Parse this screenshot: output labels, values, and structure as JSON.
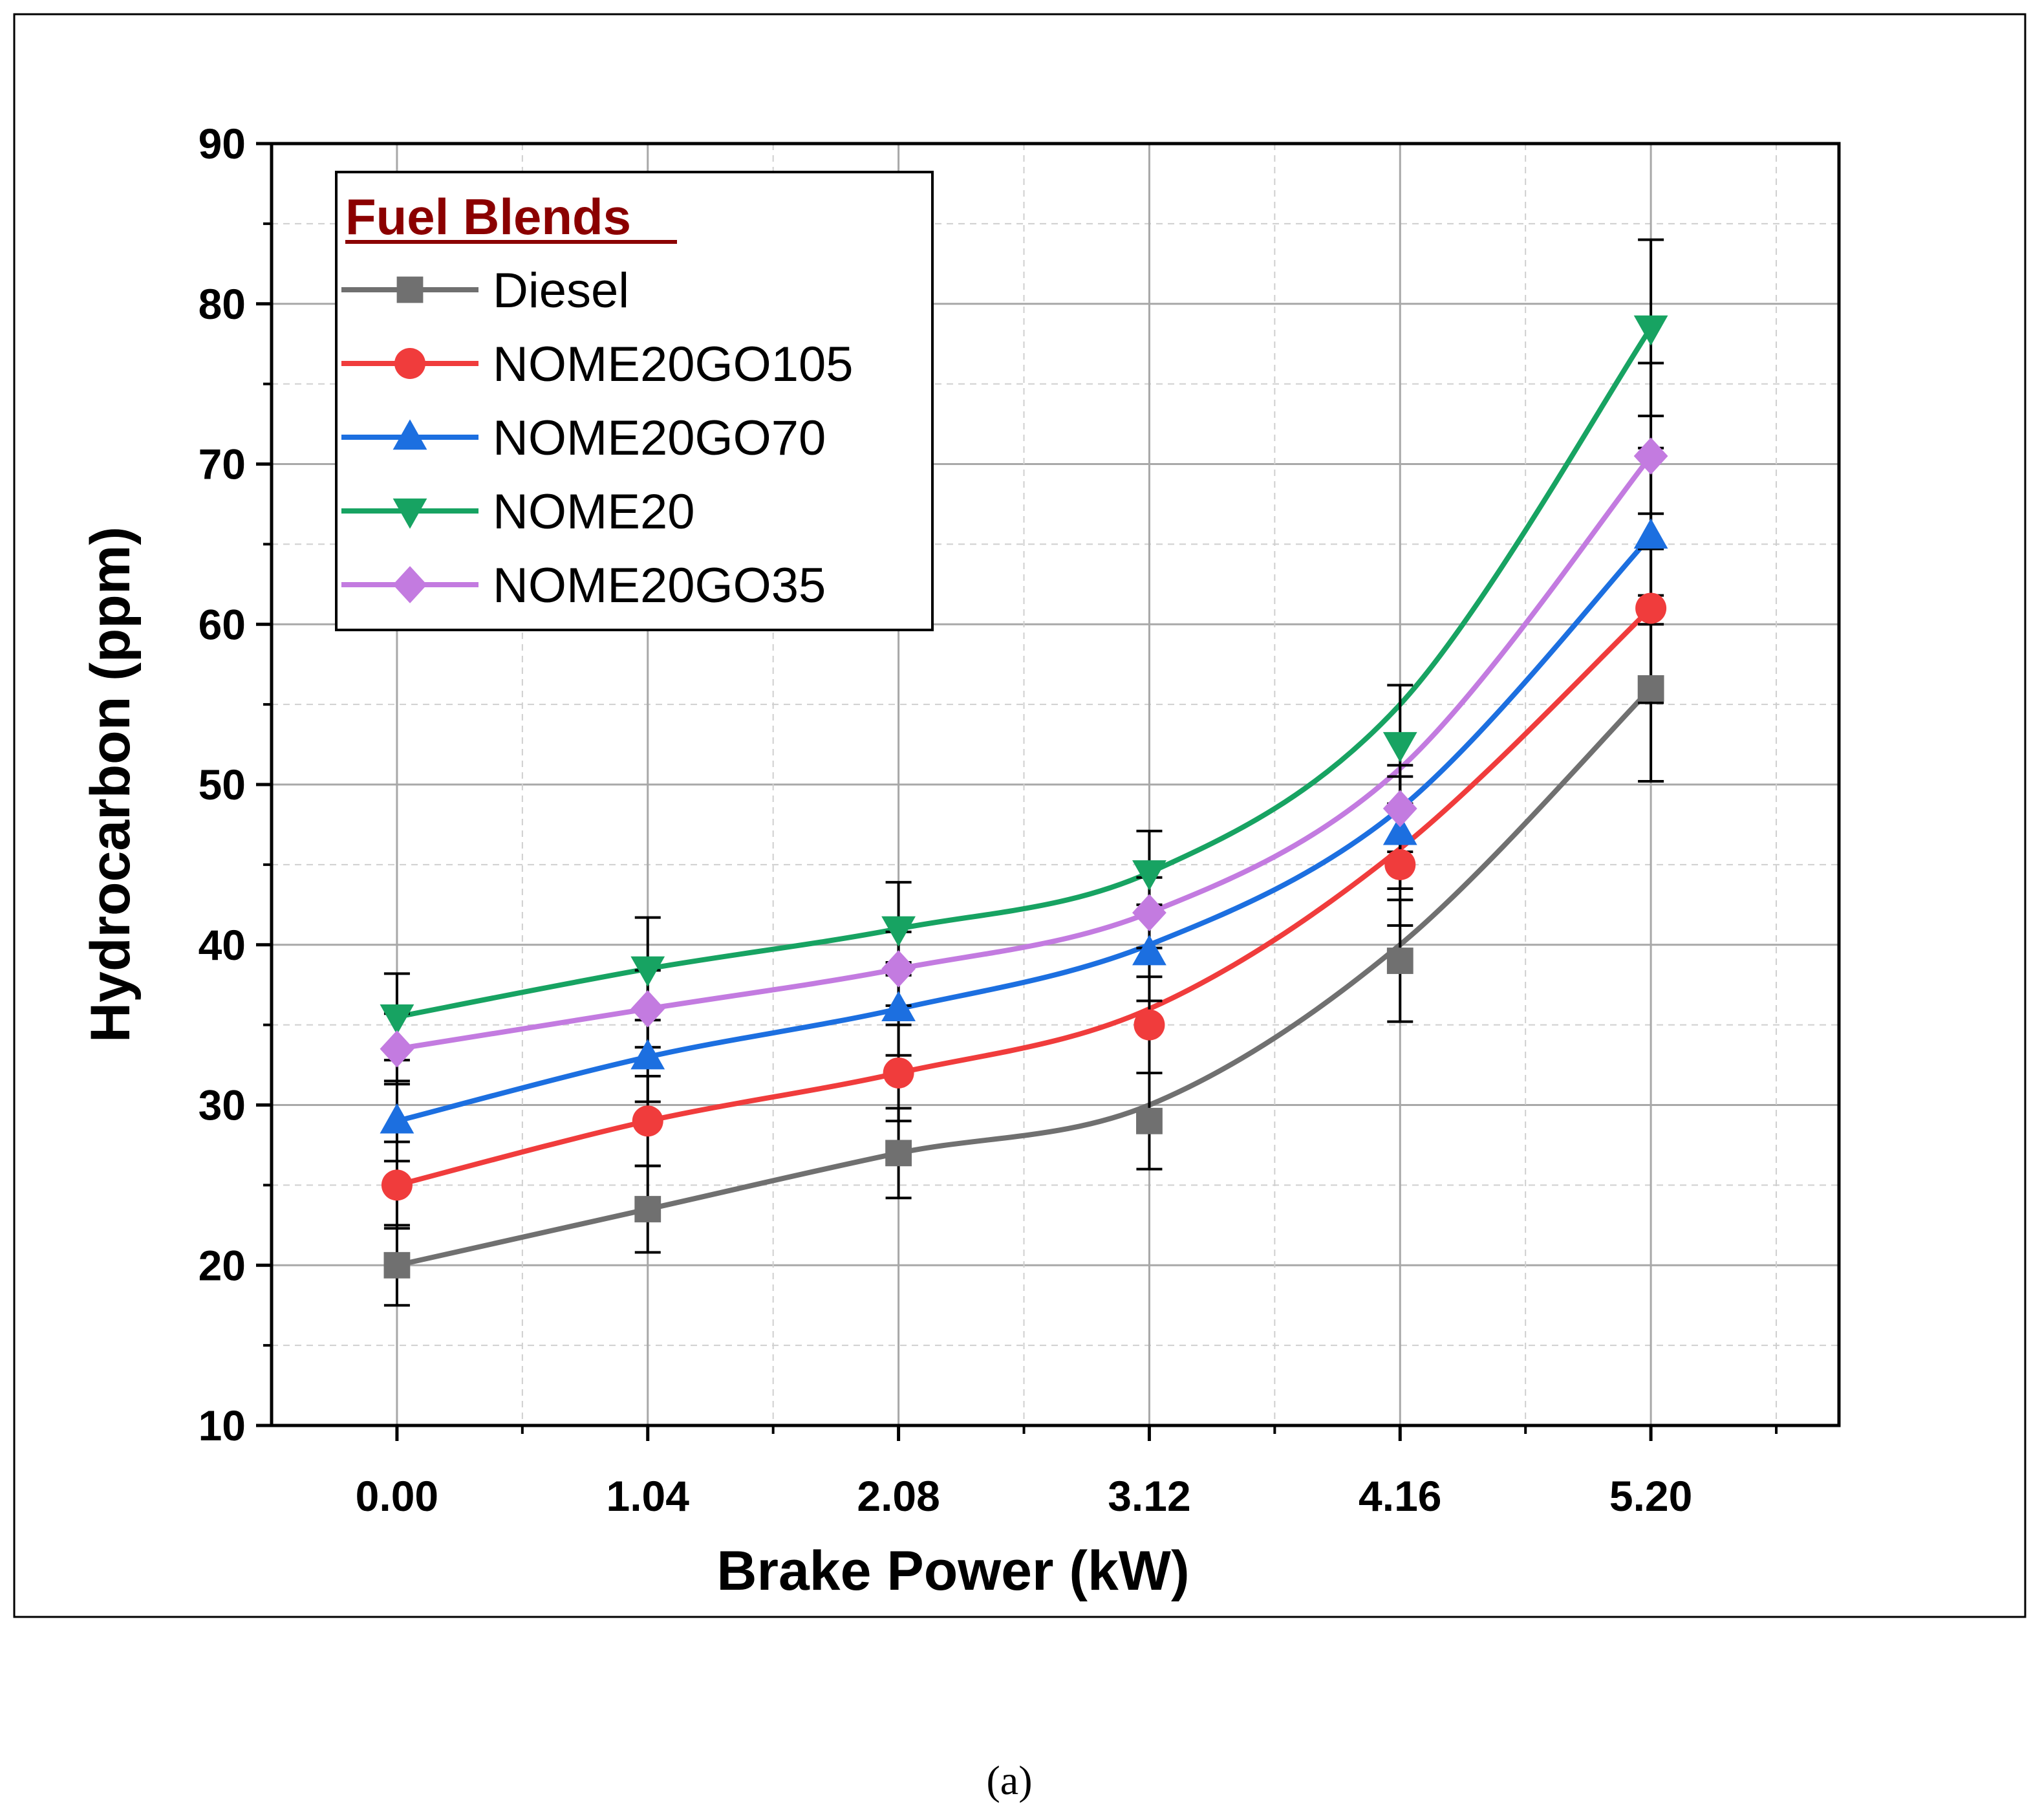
{
  "chart_data": {
    "type": "line",
    "xlabel": "Brake Power (kW)",
    "ylabel": "Hydrocarbon (ppm)",
    "x": [
      0.0,
      1.04,
      2.08,
      3.12,
      4.16,
      5.2
    ],
    "x_tick_labels": [
      "0.00",
      "1.04",
      "2.08",
      "3.12",
      "4.16",
      "5.20"
    ],
    "xlim": [
      -0.52,
      5.98
    ],
    "ylim": [
      10,
      90
    ],
    "y_ticks": [
      10,
      20,
      30,
      40,
      50,
      60,
      70,
      80,
      90
    ],
    "y_tick_labels": [
      "10",
      "20",
      "30",
      "40",
      "50",
      "60",
      "70",
      "80",
      "90"
    ],
    "grid": true,
    "legend": {
      "title": "Fuel Blends",
      "title_color": "#8b0000",
      "placement": "top-left"
    },
    "series": [
      {
        "name": "Diesel",
        "color": "#707070",
        "marker": "square",
        "values": [
          20.0,
          23.5,
          27.0,
          29.0,
          39.0,
          56.0
        ],
        "error": [
          2.5,
          2.7,
          2.8,
          3.0,
          3.8,
          5.8
        ],
        "curve": [
          20.0,
          23.5,
          27.0,
          30.0,
          40.0,
          56.0
        ]
      },
      {
        "name": "NOME20GO105",
        "color": "#f03c3c",
        "marker": "circle",
        "values": [
          25.0,
          29.0,
          32.0,
          35.0,
          45.0,
          61.0
        ],
        "error": [
          2.7,
          2.8,
          3.0,
          3.0,
          3.8,
          5.9
        ],
        "curve": [
          25.0,
          29.0,
          32.0,
          36.0,
          46.0,
          61.0
        ]
      },
      {
        "name": "NOME20GO70",
        "color": "#1c6fe0",
        "marker": "triangle-up",
        "values": [
          29.0,
          33.0,
          36.0,
          39.5,
          47.0,
          65.5
        ],
        "error": [
          2.5,
          2.8,
          2.9,
          3.0,
          3.5,
          5.5
        ],
        "curve": [
          29.0,
          33.0,
          36.0,
          40.0,
          48.5,
          65.5
        ]
      },
      {
        "name": "NOME20",
        "color": "#17a362",
        "marker": "triangle-down",
        "values": [
          35.5,
          38.5,
          41.0,
          44.5,
          52.5,
          78.5
        ],
        "error": [
          2.7,
          3.2,
          2.9,
          2.6,
          3.7,
          5.5
        ],
        "curve": [
          35.5,
          38.5,
          41.0,
          44.5,
          55.0,
          78.5
        ]
      },
      {
        "name": "NOME20GO35",
        "color": "#c37be0",
        "marker": "diamond",
        "values": [
          33.5,
          36.0,
          38.5,
          42.0,
          48.5,
          70.5
        ],
        "error": [
          2.2,
          2.4,
          2.3,
          2.2,
          2.7,
          5.8
        ],
        "curve": [
          33.5,
          36.0,
          38.5,
          42.0,
          51.0,
          70.5
        ]
      }
    ]
  },
  "caption": "(a)"
}
